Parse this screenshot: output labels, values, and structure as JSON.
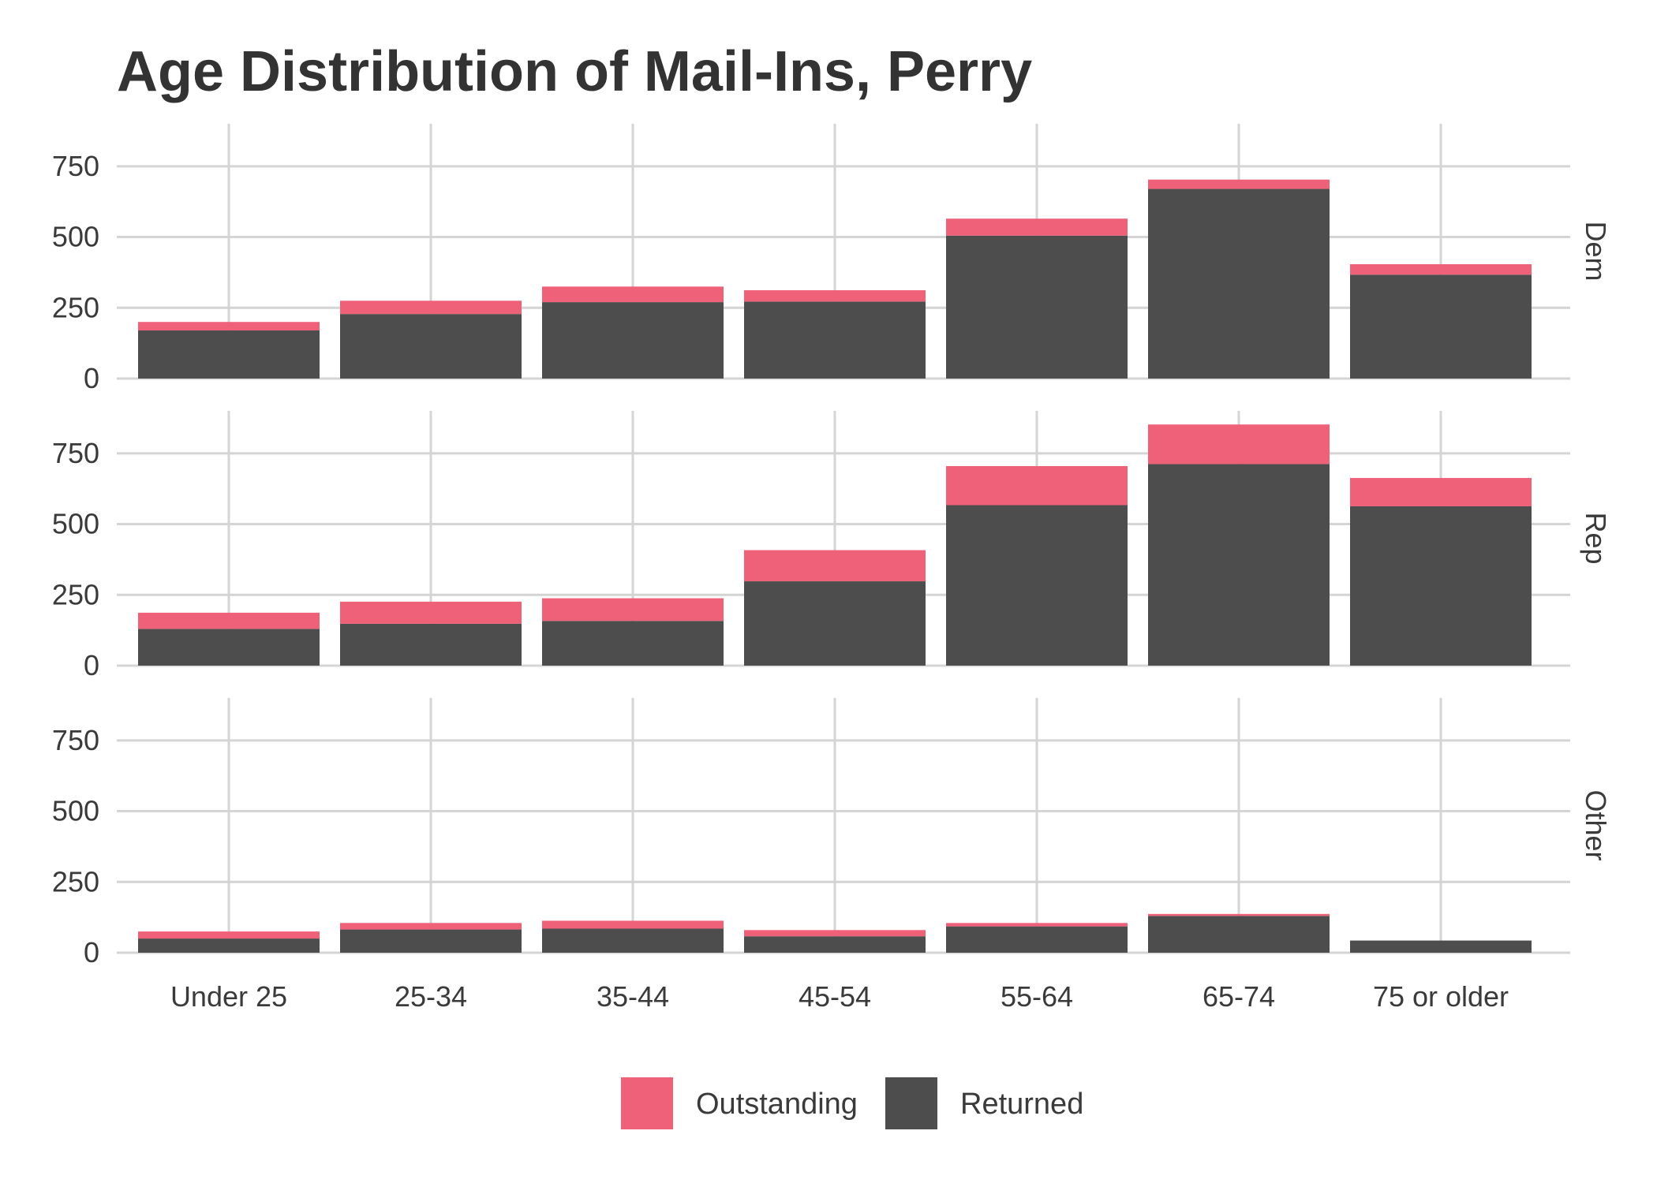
{
  "chart_data": {
    "type": "bar",
    "stacked": true,
    "title": "Age Distribution of Mail-Ins, Perry",
    "xlabel": "",
    "ylabel": "",
    "categories": [
      "Under 25",
      "25-34",
      "35-44",
      "45-54",
      "55-64",
      "65-74",
      "75 or older"
    ],
    "ylim": [
      0,
      900
    ],
    "yticks": [
      0,
      250,
      500,
      750
    ],
    "ytick_labels": [
      "0",
      "250",
      "500",
      "750"
    ],
    "legend_position": "bottom",
    "legend": [
      {
        "name": "Outstanding",
        "color": "#EF6079"
      },
      {
        "name": "Returned",
        "color": "#4D4D4D"
      }
    ],
    "facets": [
      {
        "label": "Dem",
        "series": [
          {
            "name": "Returned",
            "values": [
              170,
              228,
              270,
              272,
              505,
              670,
              367
            ]
          },
          {
            "name": "Outstanding",
            "values": [
              30,
              47,
              55,
              40,
              60,
              33,
              37
            ]
          }
        ]
      },
      {
        "label": "Rep",
        "series": [
          {
            "name": "Returned",
            "values": [
              130,
              148,
              158,
              298,
              567,
              712,
              563
            ]
          },
          {
            "name": "Outstanding",
            "values": [
              57,
              78,
              80,
              110,
              138,
              140,
              100
            ]
          }
        ]
      },
      {
        "label": "Other",
        "series": [
          {
            "name": "Returned",
            "values": [
              50,
              82,
              85,
              58,
              93,
              130,
              43
            ]
          },
          {
            "name": "Outstanding",
            "values": [
              25,
              23,
              28,
              22,
              12,
              7,
              0
            ]
          }
        ]
      }
    ]
  }
}
